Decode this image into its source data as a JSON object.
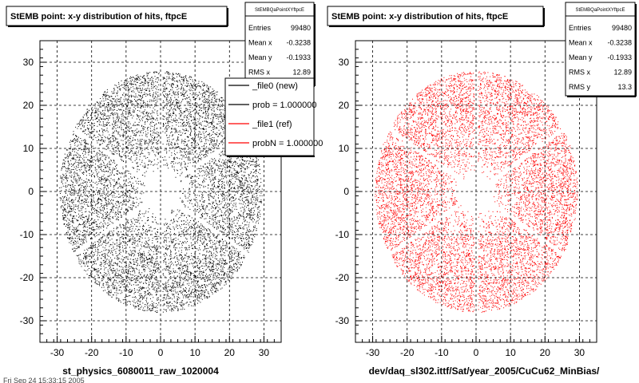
{
  "footer": {
    "stamp": "Fri Sep 24 15:33:15 2005"
  },
  "chart_data": [
    {
      "type": "scatter",
      "title": "StEMB point: x-y distribution of hits, ftpcE",
      "xlabel": "st_physics_6080011_raw_1020004",
      "ylabel": "",
      "xlim": [
        -35,
        35
      ],
      "ylim": [
        -35,
        35
      ],
      "xticks": [
        -30,
        -20,
        -10,
        0,
        10,
        20,
        30
      ],
      "yticks": [
        -30,
        -20,
        -10,
        0,
        10,
        20,
        30
      ],
      "grid": true,
      "point_color": "#000000",
      "distribution": {
        "inner_radius": 4.5,
        "outer_radius": 28,
        "sector_gaps": 6,
        "gap_width": 0.5
      },
      "stats_box": {
        "title": "StEMBQaPointXYftpcE",
        "rows": [
          {
            "label": "Entries",
            "value": "99480"
          },
          {
            "label": "Mean x",
            "value": "-0.3238"
          },
          {
            "label": "Mean y",
            "value": "-0.1933"
          },
          {
            "label": "RMS x",
            "value": "12.89"
          }
        ]
      },
      "legend": {
        "position": "top-right",
        "entries": [
          {
            "label": "_file0 (new)",
            "color": "#000000"
          },
          {
            "label": "prob = 1.000000",
            "color": "#000000"
          },
          {
            "label": "_file1 (ref)",
            "color": "#ff0000"
          },
          {
            "label": "probN = 1.000000",
            "color": "#ff0000"
          }
        ]
      }
    },
    {
      "type": "scatter",
      "title": "StEMB point: x-y distribution of hits, ftpcE",
      "xlabel": "dev/daq_sl302.ittf/Sat/year_2005/CuCu62_MinBias/",
      "ylabel": "",
      "xlim": [
        -35,
        35
      ],
      "ylim": [
        -35,
        35
      ],
      "xticks": [
        -30,
        -20,
        -10,
        0,
        10,
        20,
        30
      ],
      "yticks": [
        -30,
        -20,
        -10,
        0,
        10,
        20,
        30
      ],
      "grid": true,
      "point_color": "#ff0000",
      "distribution": {
        "inner_radius": 4.5,
        "outer_radius": 28,
        "sector_gaps": 6,
        "gap_width": 0.5
      },
      "stats_box": {
        "title": "StEMBQaPointXYftpcE",
        "rows": [
          {
            "label": "Entries",
            "value": "99480"
          },
          {
            "label": "Mean x",
            "value": "-0.3238"
          },
          {
            "label": "Mean y",
            "value": "-0.1933"
          },
          {
            "label": "RMS x",
            "value": "12.89"
          },
          {
            "label": "RMS y",
            "value": "13.3"
          }
        ]
      }
    }
  ]
}
